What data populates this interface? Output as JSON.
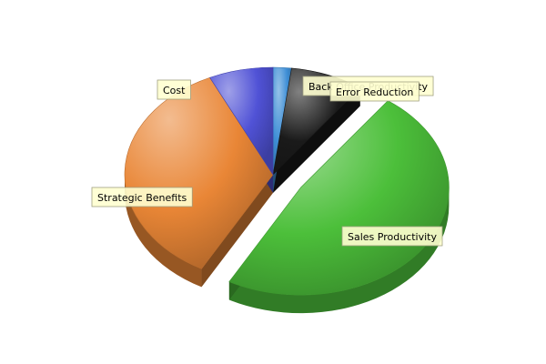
{
  "chart_data": {
    "type": "pie",
    "style": "3d-exploded",
    "legend": "none",
    "slices": [
      {
        "label": "Back Office Productivity",
        "value": 2,
        "color": "#3f8fd6"
      },
      {
        "label": "Error Reduction",
        "value": 8,
        "color": "#1a1a1a"
      },
      {
        "label": "Sales Productivity",
        "value": 48,
        "color": "#4cbf3a"
      },
      {
        "label": "Strategic Benefits",
        "value": 35,
        "color": "#e98636"
      },
      {
        "label": "Cost",
        "value": 7,
        "color": "#5052d6"
      }
    ]
  }
}
